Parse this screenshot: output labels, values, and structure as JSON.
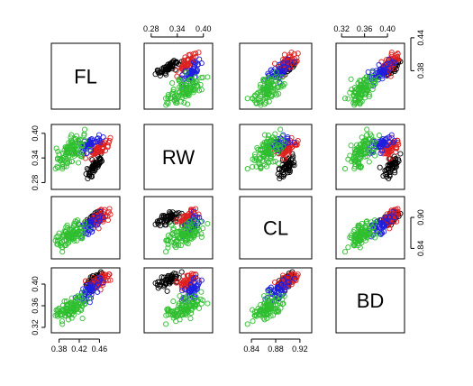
{
  "chart_data": {
    "type": "scatter-matrix",
    "title": "",
    "variables": [
      "FL",
      "RW",
      "CL",
      "BD"
    ],
    "ranges": {
      "FL": [
        0.37,
        0.495
      ],
      "RW": [
        0.27,
        0.415
      ],
      "CL": [
        0.825,
        0.935
      ],
      "BD": [
        0.315,
        0.425
      ]
    },
    "ticks": {
      "FL": {
        "values": [
          0.38,
          0.42,
          0.46
        ],
        "labels": [
          "0.38",
          "0.42",
          "0.46"
        ]
      },
      "RW": {
        "values": [
          0.28,
          0.34,
          0.4
        ],
        "labels": [
          "0.28",
          "0.34",
          "0.40"
        ]
      },
      "CL": {
        "values": [
          0.84,
          0.88,
          0.92
        ],
        "labels": [
          "0.84",
          "0.88",
          "0.92"
        ]
      },
      "BD": {
        "values": [
          0.32,
          0.36,
          0.4
        ],
        "labels": [
          "0.32",
          "0.36",
          "0.40"
        ]
      }
    },
    "side_ticks": {
      "CL": {
        "values": [
          0.84,
          0.9
        ],
        "labels": [
          "0.84",
          "0.90"
        ]
      },
      "BD": {
        "values": [
          0.38,
          0.44
        ],
        "labels": [
          "0.38",
          "0.44"
        ]
      }
    },
    "groups": [
      {
        "color": "#000000",
        "center": {
          "FL": 0.45,
          "RW": 0.318,
          "CL": 0.898,
          "BD": 0.407
        },
        "spread": {
          "FL": 0.008,
          "RW": 0.014,
          "CL": 0.007,
          "BD": 0.007
        },
        "n": 50
      },
      {
        "color": "#df1f1f",
        "center": {
          "FL": 0.462,
          "RW": 0.365,
          "CL": 0.9,
          "BD": 0.406
        },
        "spread": {
          "FL": 0.011,
          "RW": 0.012,
          "CL": 0.008,
          "BD": 0.007
        },
        "n": 50
      },
      {
        "color": "#1f1fdf",
        "center": {
          "FL": 0.441,
          "RW": 0.375,
          "CL": 0.884,
          "BD": 0.39
        },
        "spread": {
          "FL": 0.01,
          "RW": 0.012,
          "CL": 0.009,
          "BD": 0.01
        },
        "n": 50
      },
      {
        "color": "#2fbf2f",
        "center": {
          "FL": 0.403,
          "RW": 0.358,
          "CL": 0.866,
          "BD": 0.355
        },
        "spread": {
          "FL": 0.014,
          "RW": 0.022,
          "CL": 0.012,
          "BD": 0.012
        },
        "n": 100
      }
    ]
  }
}
